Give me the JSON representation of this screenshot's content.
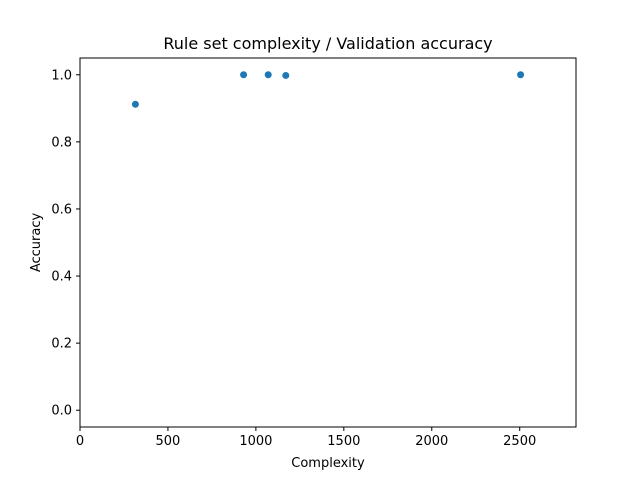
{
  "chart_data": {
    "type": "scatter",
    "title": "Rule set complexity / Validation accuracy",
    "xlabel": "Complexity",
    "ylabel": "Accuracy",
    "xlim": [
      0,
      2820
    ],
    "ylim": [
      -0.05,
      1.05
    ],
    "xticks": [
      0,
      500,
      1000,
      1500,
      2000,
      2500
    ],
    "yticks": [
      0.0,
      0.2,
      0.4,
      0.6,
      0.8,
      1.0
    ],
    "xtick_labels": [
      "0",
      "500",
      "1000",
      "1500",
      "2000",
      "2500"
    ],
    "ytick_labels": [
      "0.0",
      "0.2",
      "0.4",
      "0.6",
      "0.8",
      "1.0"
    ],
    "grid": false,
    "marker_color": "#1f77b4",
    "points": [
      {
        "x": 315,
        "y": 0.912
      },
      {
        "x": 930,
        "y": 1.0
      },
      {
        "x": 1070,
        "y": 1.0
      },
      {
        "x": 1170,
        "y": 0.998
      },
      {
        "x": 2505,
        "y": 1.0
      }
    ]
  }
}
